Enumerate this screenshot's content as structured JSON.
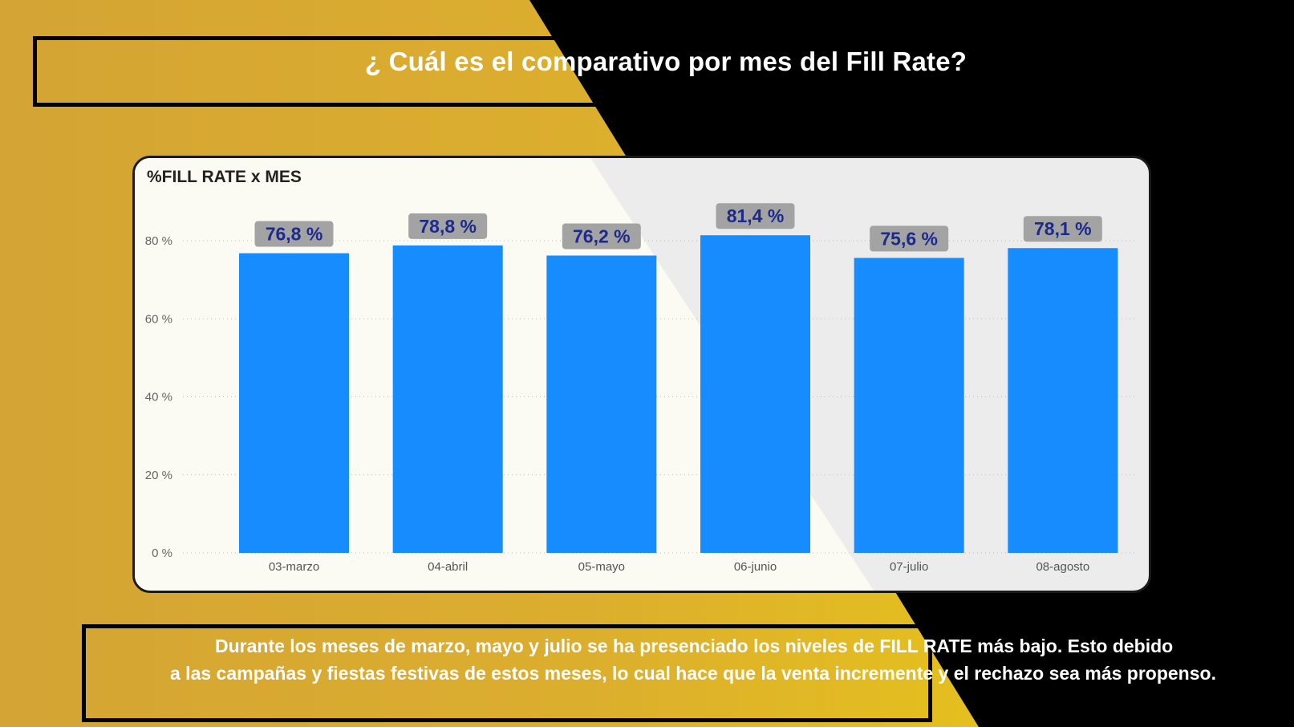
{
  "title": "¿ Cuál es el comparativo por mes del Fill Rate?",
  "chart_data": {
    "type": "bar",
    "title": "%FILL RATE x MES",
    "categories": [
      "03-marzo",
      "04-abril",
      "05-mayo",
      "06-junio",
      "07-julio",
      "08-agosto"
    ],
    "values": [
      76.8,
      78.8,
      76.2,
      81.4,
      75.6,
      78.1
    ],
    "data_labels": [
      "76,8 %",
      "78,8 %",
      "76,2 %",
      "81,4 %",
      "75,6 %",
      "78,1 %"
    ],
    "yticks": [
      0,
      20,
      40,
      60,
      80
    ],
    "ytick_labels": [
      "0 %",
      "20 %",
      "40 %",
      "60 %",
      "80 %"
    ],
    "ylim": [
      0,
      80
    ],
    "grid": true,
    "colors": {
      "bar": "#168cff",
      "label_bg": "#a3a3a3",
      "label_text": "#1c2a8c"
    }
  },
  "description": {
    "line1": "Durante los meses de marzo, mayo y julio se ha presenciado los niveles de FILL RATE más bajo. Esto debido",
    "line2": "a las campañas y fiestas festivas de estos meses, lo cual hace que la venta incremente y el rechazo sea más propenso."
  }
}
